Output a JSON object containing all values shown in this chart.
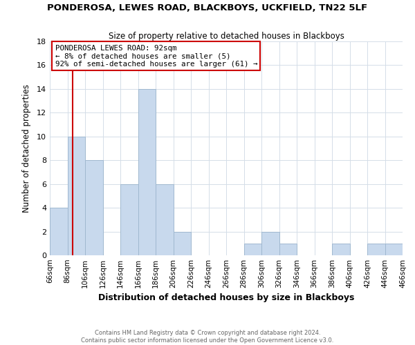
{
  "title": "PONDEROSA, LEWES ROAD, BLACKBOYS, UCKFIELD, TN22 5LF",
  "subtitle": "Size of property relative to detached houses in Blackboys",
  "xlabel": "Distribution of detached houses by size in Blackboys",
  "ylabel": "Number of detached properties",
  "bar_color": "#c8d9ed",
  "bar_edge_color": "#a0b8d0",
  "bin_edges": [
    66,
    86,
    106,
    126,
    146,
    166,
    186,
    206,
    226,
    246,
    266,
    286,
    306,
    326,
    346,
    366,
    386,
    406,
    426,
    446,
    466
  ],
  "counts": [
    4,
    10,
    8,
    0,
    6,
    14,
    6,
    2,
    0,
    0,
    0,
    1,
    2,
    1,
    0,
    0,
    1,
    0,
    1,
    1
  ],
  "property_line_x": 92,
  "property_line_color": "#cc0000",
  "annotation_text_line1": "PONDEROSA LEWES ROAD: 92sqm",
  "annotation_text_line2": "← 8% of detached houses are smaller (5)",
  "annotation_text_line3": "92% of semi-detached houses are larger (61) →",
  "annotation_box_color": "#ffffff",
  "annotation_box_edge_color": "#cc0000",
  "ylim": [
    0,
    18
  ],
  "yticks": [
    0,
    2,
    4,
    6,
    8,
    10,
    12,
    14,
    16,
    18
  ],
  "tick_labels": [
    "66sqm",
    "86sqm",
    "106sqm",
    "126sqm",
    "146sqm",
    "166sqm",
    "186sqm",
    "206sqm",
    "226sqm",
    "246sqm",
    "266sqm",
    "286sqm",
    "306sqm",
    "326sqm",
    "346sqm",
    "366sqm",
    "386sqm",
    "406sqm",
    "426sqm",
    "446sqm",
    "466sqm"
  ],
  "footer_line1": "Contains HM Land Registry data © Crown copyright and database right 2024.",
  "footer_line2": "Contains public sector information licensed under the Open Government Licence v3.0.",
  "background_color": "#ffffff",
  "grid_color": "#d4dde8"
}
